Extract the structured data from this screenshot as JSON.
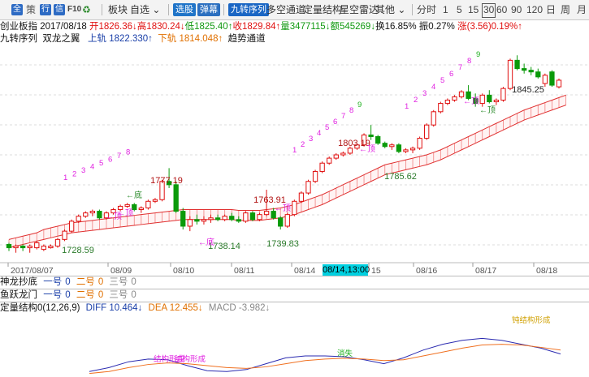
{
  "toolbar": {
    "icons": [
      {
        "name": "all-icon",
        "glyph": "全"
      },
      {
        "name": "strategy-icon",
        "glyph": "策"
      },
      {
        "name": "quote-icon",
        "glyph": "行"
      },
      {
        "name": "info-icon",
        "glyph": "信"
      },
      {
        "name": "f10-icon",
        "glyph": "F10"
      },
      {
        "name": "gear-icon",
        "glyph": "♻"
      }
    ],
    "menu_sector": "板块",
    "menu_watchlist": "自选",
    "select_stock": "选股",
    "alert": "弹幕",
    "nine_seq_btn": "九转序列",
    "long_short_channel": "多空通道",
    "volume_structure": "定量结构",
    "star_radar": "星空雷达",
    "other": "其他",
    "periods": [
      "分时",
      "1",
      "5",
      "15",
      "30",
      "60",
      "90",
      "120",
      "日",
      "周",
      "月"
    ],
    "selected_period": "30"
  },
  "info": {
    "name": "创业板指",
    "date": "2017/08/18",
    "open": "开1826.36↓",
    "high": "高1830.24↓",
    "low": "低1825.40↑",
    "close": "收1829.84↑",
    "volume": "量3477115↓",
    "amount": "额545269↓",
    "turnover": "换16.85%",
    "amplitude": "振0.27%",
    "change": "涨(3.56)0.19%↑"
  },
  "indicator_line": {
    "name": "九转序列",
    "dragon": "双龙之翼",
    "upper_label": "上轨",
    "upper_value": "1822.330↑",
    "lower_label": "下轨",
    "lower_value": "1814.048↑",
    "trend": "趋势通道"
  },
  "chart_data": {
    "type": "candlestick",
    "price_labels": [
      {
        "text": "1728.59"
      },
      {
        "text": "1777.19"
      },
      {
        "text": "1738.14"
      },
      {
        "text": "1763.91"
      },
      {
        "text": "1739.83"
      },
      {
        "text": "1803.19"
      },
      {
        "text": "1785.62"
      },
      {
        "text": "1845.25"
      }
    ],
    "x_labels": [
      "2017/08/07",
      "08/09",
      "08/10",
      "08/11",
      "08/14",
      "08/14,13:00",
      "15",
      "08/16",
      "08/17",
      "08/18"
    ],
    "crosshair_date": "08/14,13:00",
    "markers": [
      {
        "text": "←底"
      },
      {
        "text": "←顶"
      },
      {
        "text": "←顶"
      },
      {
        "text": "←底"
      },
      {
        "text": "←顶"
      },
      {
        "text": "←顶"
      },
      {
        "text": "←顶"
      },
      {
        "text": "←顶"
      }
    ],
    "nine_sequences": [
      [
        "1",
        "2",
        "3",
        "4",
        "5",
        "6",
        "7",
        "8"
      ],
      [
        "1",
        "2",
        "3",
        "4",
        "5",
        "6",
        "7",
        "8",
        "9"
      ],
      [
        "1",
        "2",
        "3",
        "4",
        "5",
        "6",
        "7",
        "8",
        "9"
      ]
    ],
    "candles": [
      {
        "o": 1731,
        "h": 1732,
        "l": 1727,
        "c": 1729
      },
      {
        "o": 1729,
        "h": 1731,
        "l": 1726,
        "c": 1730
      },
      {
        "o": 1730,
        "h": 1731,
        "l": 1727,
        "c": 1729
      },
      {
        "o": 1729,
        "h": 1731,
        "l": 1726,
        "c": 1730
      },
      {
        "o": 1729,
        "h": 1733,
        "l": 1728,
        "c": 1732
      },
      {
        "o": 1728,
        "h": 1731,
        "l": 1727,
        "c": 1730
      },
      {
        "o": 1729,
        "h": 1731,
        "l": 1728.5,
        "c": 1730
      },
      {
        "o": 1730,
        "h": 1735,
        "l": 1729,
        "c": 1734
      },
      {
        "o": 1734,
        "h": 1740,
        "l": 1733,
        "c": 1739
      },
      {
        "o": 1739,
        "h": 1746,
        "l": 1738,
        "c": 1745
      },
      {
        "o": 1745,
        "h": 1749,
        "l": 1744,
        "c": 1748
      },
      {
        "o": 1748,
        "h": 1751,
        "l": 1747,
        "c": 1750
      },
      {
        "o": 1750,
        "h": 1752,
        "l": 1748,
        "c": 1751
      },
      {
        "o": 1751,
        "h": 1752,
        "l": 1746,
        "c": 1747
      },
      {
        "o": 1747,
        "h": 1751,
        "l": 1746,
        "c": 1750
      },
      {
        "o": 1750,
        "h": 1753,
        "l": 1749,
        "c": 1752
      },
      {
        "o": 1752,
        "h": 1755,
        "l": 1751,
        "c": 1754
      },
      {
        "o": 1754,
        "h": 1756,
        "l": 1753,
        "c": 1755
      },
      {
        "o": 1755,
        "h": 1756,
        "l": 1751,
        "c": 1752
      },
      {
        "o": 1752,
        "h": 1754,
        "l": 1750,
        "c": 1753
      },
      {
        "o": 1753,
        "h": 1758,
        "l": 1752,
        "c": 1757
      },
      {
        "o": 1757,
        "h": 1759,
        "l": 1756,
        "c": 1758
      },
      {
        "o": 1758,
        "h": 1770,
        "l": 1757,
        "c": 1769
      },
      {
        "o": 1769,
        "h": 1777,
        "l": 1765,
        "c": 1767
      },
      {
        "o": 1767,
        "h": 1769,
        "l": 1750,
        "c": 1751
      },
      {
        "o": 1751,
        "h": 1753,
        "l": 1740,
        "c": 1742
      },
      {
        "o": 1742,
        "h": 1748,
        "l": 1739,
        "c": 1746
      },
      {
        "o": 1746,
        "h": 1749,
        "l": 1743,
        "c": 1745
      },
      {
        "o": 1745,
        "h": 1748,
        "l": 1743,
        "c": 1746
      },
      {
        "o": 1746,
        "h": 1749,
        "l": 1744,
        "c": 1747
      },
      {
        "o": 1747,
        "h": 1749,
        "l": 1745,
        "c": 1746
      },
      {
        "o": 1746,
        "h": 1749,
        "l": 1745,
        "c": 1748
      },
      {
        "o": 1748,
        "h": 1750,
        "l": 1745,
        "c": 1746
      },
      {
        "o": 1746,
        "h": 1748,
        "l": 1744,
        "c": 1745
      },
      {
        "o": 1745,
        "h": 1751,
        "l": 1744,
        "c": 1750
      },
      {
        "o": 1750,
        "h": 1751,
        "l": 1745,
        "c": 1746
      },
      {
        "o": 1746,
        "h": 1750,
        "l": 1745,
        "c": 1749
      },
      {
        "o": 1749,
        "h": 1764,
        "l": 1748,
        "c": 1751
      },
      {
        "o": 1751,
        "h": 1753,
        "l": 1746,
        "c": 1747
      },
      {
        "o": 1747,
        "h": 1748,
        "l": 1740,
        "c": 1742
      },
      {
        "o": 1742,
        "h": 1750,
        "l": 1741,
        "c": 1749
      },
      {
        "o": 1749,
        "h": 1758,
        "l": 1748,
        "c": 1757
      },
      {
        "o": 1757,
        "h": 1763,
        "l": 1756,
        "c": 1762
      },
      {
        "o": 1762,
        "h": 1770,
        "l": 1761,
        "c": 1769
      },
      {
        "o": 1769,
        "h": 1776,
        "l": 1768,
        "c": 1775
      },
      {
        "o": 1775,
        "h": 1781,
        "l": 1774,
        "c": 1780
      },
      {
        "o": 1780,
        "h": 1784,
        "l": 1779,
        "c": 1783
      },
      {
        "o": 1783,
        "h": 1786,
        "l": 1782,
        "c": 1785
      },
      {
        "o": 1785,
        "h": 1787,
        "l": 1784,
        "c": 1786
      },
      {
        "o": 1786,
        "h": 1790,
        "l": 1785,
        "c": 1789
      },
      {
        "o": 1789,
        "h": 1792,
        "l": 1788,
        "c": 1791
      },
      {
        "o": 1791,
        "h": 1798,
        "l": 1790,
        "c": 1797
      },
      {
        "o": 1797,
        "h": 1803,
        "l": 1794,
        "c": 1796
      },
      {
        "o": 1796,
        "h": 1797,
        "l": 1791,
        "c": 1792
      },
      {
        "o": 1792,
        "h": 1793,
        "l": 1789,
        "c": 1790
      },
      {
        "o": 1790,
        "h": 1792,
        "l": 1788,
        "c": 1791
      },
      {
        "o": 1791,
        "h": 1792,
        "l": 1786,
        "c": 1787
      },
      {
        "o": 1787,
        "h": 1789,
        "l": 1786,
        "c": 1788
      },
      {
        "o": 1788,
        "h": 1790,
        "l": 1786,
        "c": 1789
      },
      {
        "o": 1789,
        "h": 1796,
        "l": 1788,
        "c": 1795
      },
      {
        "o": 1795,
        "h": 1804,
        "l": 1794,
        "c": 1803
      },
      {
        "o": 1803,
        "h": 1812,
        "l": 1802,
        "c": 1811
      },
      {
        "o": 1811,
        "h": 1817,
        "l": 1810,
        "c": 1816
      },
      {
        "o": 1816,
        "h": 1819,
        "l": 1815,
        "c": 1818
      },
      {
        "o": 1818,
        "h": 1821,
        "l": 1817,
        "c": 1820
      },
      {
        "o": 1820,
        "h": 1824,
        "l": 1819,
        "c": 1823
      },
      {
        "o": 1823,
        "h": 1827,
        "l": 1818,
        "c": 1819
      },
      {
        "o": 1819,
        "h": 1822,
        "l": 1814,
        "c": 1816
      },
      {
        "o": 1816,
        "h": 1822,
        "l": 1814,
        "c": 1821
      },
      {
        "o": 1821,
        "h": 1824,
        "l": 1816,
        "c": 1817
      },
      {
        "o": 1817,
        "h": 1819,
        "l": 1815,
        "c": 1818
      },
      {
        "o": 1818,
        "h": 1826,
        "l": 1817,
        "c": 1825
      },
      {
        "o": 1825,
        "h": 1843,
        "l": 1824,
        "c": 1842
      },
      {
        "o": 1842,
        "h": 1845,
        "l": 1836,
        "c": 1837
      },
      {
        "o": 1837,
        "h": 1840,
        "l": 1834,
        "c": 1836
      },
      {
        "o": 1836,
        "h": 1838,
        "l": 1833,
        "c": 1835
      },
      {
        "o": 1835,
        "h": 1837,
        "l": 1831,
        "c": 1832
      },
      {
        "o": 1828,
        "h": 1834,
        "l": 1826,
        "c": 1833
      },
      {
        "o": 1835,
        "h": 1836,
        "l": 1826,
        "c": 1827
      },
      {
        "o": 1826,
        "h": 1831,
        "l": 1825,
        "c": 1830
      }
    ],
    "channel_upper": [
      1734,
      1735,
      1736,
      1737,
      1738,
      1740,
      1741,
      1742,
      1743,
      1744,
      1744.5,
      1745,
      1745.5,
      1746,
      1746.5,
      1747,
      1747.5,
      1748,
      1748.5,
      1749,
      1749.5,
      1750,
      1750.5,
      1751,
      1751.5,
      1752,
      1752,
      1752,
      1752,
      1752,
      1752,
      1752,
      1752,
      1751.5,
      1751.5,
      1751.5,
      1751.5,
      1752,
      1752.5,
      1753,
      1754,
      1755,
      1756.5,
      1758,
      1759.5,
      1761,
      1763,
      1765,
      1767,
      1769,
      1771,
      1773,
      1775,
      1777,
      1779,
      1780,
      1781,
      1782,
      1783,
      1784,
      1785,
      1786.5,
      1788,
      1790,
      1792,
      1794,
      1796,
      1798,
      1800,
      1802,
      1804,
      1806,
      1808,
      1810,
      1812,
      1813.5,
      1815,
      1816.5,
      1818,
      1819.5,
      1821
    ],
    "channel_lower": [
      1729,
      1730,
      1731,
      1732,
      1733,
      1734,
      1735,
      1736,
      1737,
      1738,
      1738.5,
      1739,
      1739.5,
      1740,
      1740.5,
      1741,
      1741.5,
      1742,
      1742.5,
      1743,
      1743.5,
      1744,
      1744.5,
      1745,
      1745.5,
      1746,
      1746,
      1746,
      1746,
      1746,
      1746,
      1746,
      1746,
      1745.5,
      1745.5,
      1745.5,
      1745.5,
      1746,
      1746.5,
      1747,
      1748,
      1749,
      1750.5,
      1752,
      1753.5,
      1755,
      1757,
      1759,
      1761,
      1763,
      1765,
      1767,
      1769,
      1771,
      1773,
      1774,
      1775,
      1776,
      1777,
      1778,
      1779,
      1780.5,
      1782,
      1784,
      1786,
      1788,
      1790,
      1792,
      1794,
      1796,
      1798,
      1800,
      1802,
      1804,
      1806,
      1807.5,
      1809,
      1810.5,
      1812,
      1813.5,
      1815
    ],
    "ylim": [
      1720,
      1850
    ]
  },
  "panels": {
    "shenlong": {
      "label": "神龙抄底",
      "items": [
        "一号",
        "0",
        "二号",
        "0",
        "三号",
        "0"
      ]
    },
    "yuyue": {
      "label": "鱼跃龙门",
      "items": [
        "一号",
        "0",
        "二号",
        "0",
        "三号",
        "0"
      ]
    },
    "macd": {
      "label": "定量结构0(12,26,9)",
      "diff": "DIFF 10.464↓",
      "dea": "DEA 12.455↓",
      "macd": "MACD -3.982↓",
      "annotations": [
        "钝结构形成",
        "结构形成",
        "结构形成",
        "消失"
      ],
      "diff_series": [
        0.1,
        0.2,
        0.35,
        0.42,
        0.4,
        0.25,
        0.12,
        0.1,
        0.15,
        0.3,
        0.45,
        0.5,
        0.5,
        0.48,
        0.4,
        0.3,
        0.45,
        0.65,
        0.8,
        0.9,
        0.95,
        0.9,
        0.8,
        0.7,
        0.55
      ],
      "dea_series": [
        0.05,
        0.1,
        0.2,
        0.28,
        0.32,
        0.3,
        0.25,
        0.2,
        0.18,
        0.22,
        0.3,
        0.38,
        0.42,
        0.44,
        0.42,
        0.38,
        0.4,
        0.5,
        0.6,
        0.7,
        0.78,
        0.8,
        0.78,
        0.72,
        0.65
      ]
    }
  }
}
